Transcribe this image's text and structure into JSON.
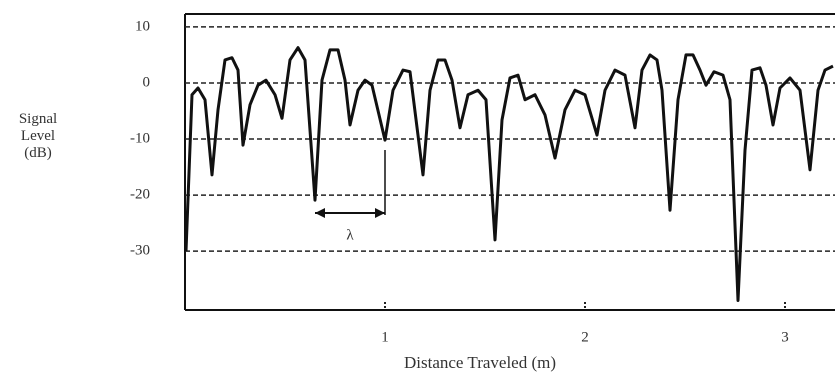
{
  "chart_data": {
    "type": "line",
    "xlabel": "Distance Traveled (m)",
    "ylabel": "Signal Level (dB)",
    "annotation": "λ",
    "color": "#111111",
    "grid": true,
    "xlim": [
      0,
      3.25
    ],
    "ylim": [
      -40.5,
      12.3
    ],
    "xticks": [
      1,
      2,
      3
    ],
    "yticks": [
      10,
      0,
      -10,
      -20,
      -30
    ],
    "x": [
      0.005,
      0.035,
      0.065,
      0.1,
      0.135,
      0.165,
      0.2,
      0.235,
      0.265,
      0.29,
      0.325,
      0.365,
      0.405,
      0.45,
      0.485,
      0.525,
      0.565,
      0.6,
      0.65,
      0.685,
      0.725,
      0.765,
      0.8,
      0.825,
      0.865,
      0.9,
      0.935,
      1.0,
      1.04,
      1.09,
      1.125,
      1.19,
      1.225,
      1.265,
      1.3,
      1.335,
      1.375,
      1.415,
      1.465,
      1.505,
      1.55,
      1.585,
      1.625,
      1.665,
      1.7,
      1.75,
      1.8,
      1.85,
      1.9,
      1.95,
      2.0,
      2.06,
      2.1,
      2.15,
      2.2,
      2.25,
      2.285,
      2.325,
      2.36,
      2.385,
      2.425,
      2.465,
      2.505,
      2.54,
      2.575,
      2.605,
      2.645,
      2.69,
      2.725,
      2.765,
      2.8,
      2.835,
      2.875,
      2.905,
      2.94,
      2.975,
      3.025,
      3.075,
      3.125,
      3.165,
      3.2,
      3.24
    ],
    "values": [
      -30,
      -2.1,
      -0.9,
      -3,
      -16.4,
      -4.8,
      4.1,
      4.5,
      2.3,
      -11.1,
      -3.9,
      -0.4,
      0.5,
      -2.1,
      -6.3,
      4.1,
      6.3,
      4.1,
      -20.9,
      0.5,
      5.9,
      5.9,
      0.5,
      -7.5,
      -1.3,
      0.5,
      -0.4,
      -10.2,
      -1.3,
      2.3,
      2,
      -16.4,
      -1.3,
      4.1,
      4.1,
      0.5,
      -8,
      -2.1,
      -1.3,
      -3,
      -28,
      -6.6,
      0.9,
      1.4,
      -3,
      -2.1,
      -5.7,
      -13.4,
      -4.8,
      -1.3,
      -2.1,
      -9.3,
      -1.3,
      2.3,
      1.4,
      -8,
      2.3,
      5,
      4.1,
      -1.3,
      -22.7,
      -3,
      5,
      5,
      2.3,
      -0.4,
      2,
      1.4,
      -3,
      -38.8,
      -12,
      2.3,
      2.7,
      -0.4,
      -7.5,
      -0.9,
      0.9,
      -1.3,
      -15.5,
      -1.3,
      2.3,
      3
    ]
  }
}
